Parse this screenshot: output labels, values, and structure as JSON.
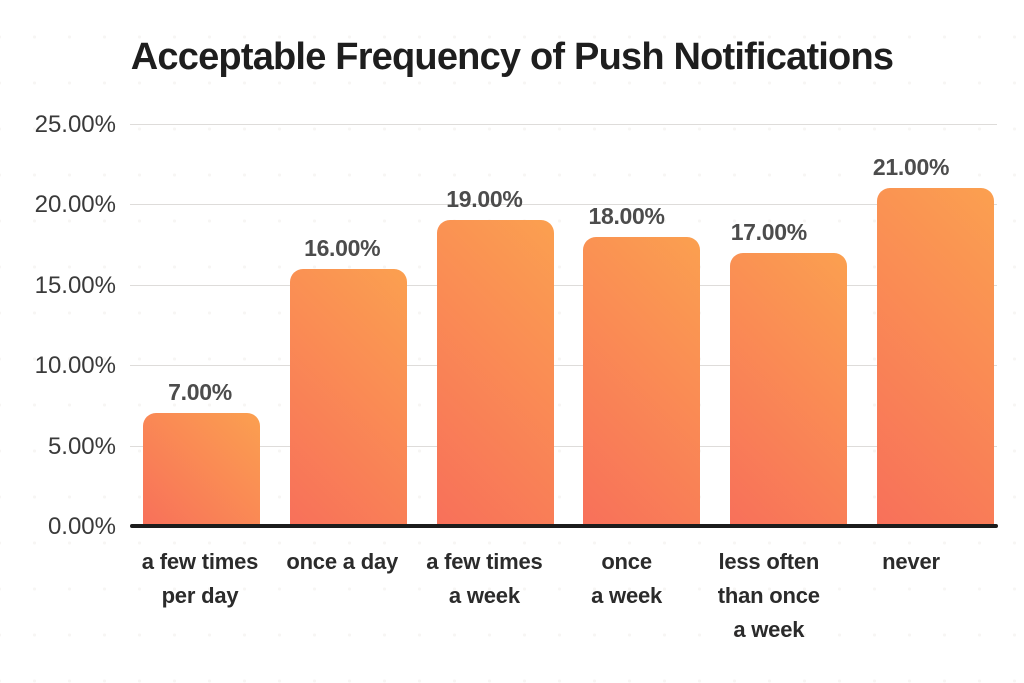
{
  "title": "Acceptable Frequency of Push Notifications",
  "chart_data": {
    "type": "bar",
    "title": "Acceptable Frequency of Push Notifications",
    "categories": [
      "a few times per day",
      "once a day",
      "a few times a week",
      "once a week",
      "less often than once a week",
      "never"
    ],
    "category_lines": [
      [
        "a few times",
        "per day"
      ],
      [
        "once a day"
      ],
      [
        "a few times",
        "a week"
      ],
      [
        "once",
        "a week"
      ],
      [
        "less often",
        "than once",
        "a week"
      ],
      [
        "never"
      ]
    ],
    "values": [
      7,
      16,
      19,
      18,
      17,
      21
    ],
    "value_labels": [
      "7.00%",
      "16.00%",
      "19.00%",
      "18.00%",
      "17.00%",
      "21.00%"
    ],
    "y_ticks": [
      {
        "value": 25,
        "label": "25.00%"
      },
      {
        "value": 20,
        "label": "20.00%"
      },
      {
        "value": 15,
        "label": "15.00%"
      },
      {
        "value": 10,
        "label": "10.00%"
      },
      {
        "value": 5,
        "label": "5.00%"
      },
      {
        "value": 0,
        "label": "0.00%"
      }
    ],
    "ylim": [
      0,
      25
    ],
    "xlabel": "",
    "ylabel": "",
    "grid": true,
    "legend": "none"
  },
  "colors": {
    "background": "#ffffff",
    "title": "#1e1e1e",
    "gridline": "#dedcda",
    "axis": "#1c1c1c",
    "bar_gradient_start": "#f8705a",
    "bar_gradient_end": "#fba050",
    "value_label": "#4c4c4c",
    "y_tick_label": "#3a3a3a",
    "category_label": "#2b2b2b"
  }
}
